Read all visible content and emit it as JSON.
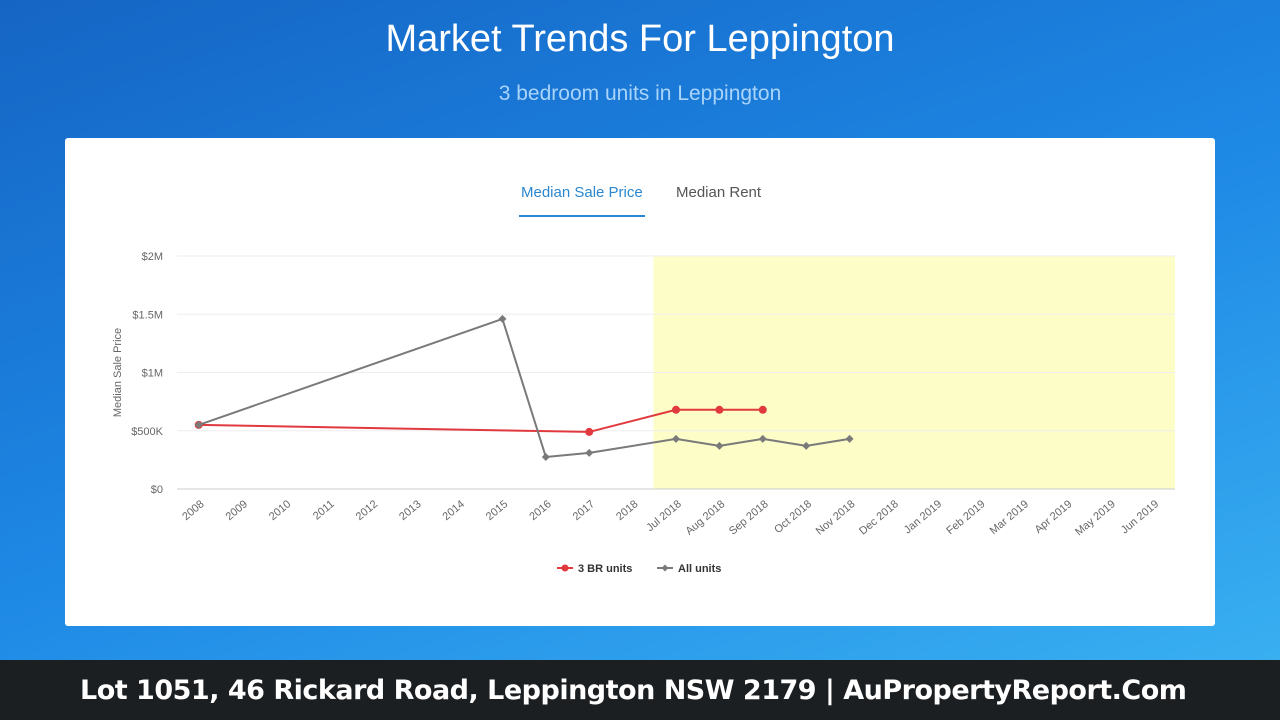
{
  "header": {
    "title": "Market Trends For Leppington",
    "subtitle": "3 bedroom units in Leppington"
  },
  "tabs": [
    "Median Sale Price",
    "Median Rent"
  ],
  "chart_data": {
    "type": "line",
    "y_label": "Median Sale Price",
    "categories": [
      "2008",
      "2009",
      "2010",
      "2011",
      "2012",
      "2013",
      "2014",
      "2015",
      "2016",
      "2017",
      "2018",
      "Jul 2018",
      "Aug 2018",
      "Sep 2018",
      "Oct 2018",
      "Nov 2018",
      "Dec 2018",
      "Jan 2019",
      "Feb 2019",
      "Mar 2019",
      "Apr 2019",
      "May 2019",
      "Jun 2019"
    ],
    "series": [
      {
        "name": "3 BR units",
        "color": "#e0393e",
        "values": [
          550000,
          null,
          null,
          null,
          null,
          null,
          null,
          null,
          null,
          490000,
          null,
          680000,
          680000,
          680000,
          null,
          null,
          null,
          null,
          null,
          null,
          null,
          null,
          null
        ]
      },
      {
        "name": "All units",
        "color": "#7a7a7a",
        "values": [
          550000,
          null,
          null,
          null,
          null,
          null,
          null,
          1460000,
          275000,
          310000,
          null,
          430000,
          370000,
          430000,
          370000,
          430000,
          null,
          null,
          null,
          null,
          null,
          null,
          null
        ]
      }
    ],
    "ylim": [
      0,
      2000000
    ],
    "yticks": [
      {
        "value": 0,
        "label": "$0"
      },
      {
        "value": 500000,
        "label": "$500K"
      },
      {
        "value": 1000000,
        "label": "$1M"
      },
      {
        "value": 1500000,
        "label": "$1.5M"
      },
      {
        "value": 2000000,
        "label": "$2M"
      }
    ],
    "grid": true
  },
  "footer": {
    "text": "Lot 1051, 46 Rickard Road, Leppington NSW 2179 | AuPropertyReport.Com"
  }
}
